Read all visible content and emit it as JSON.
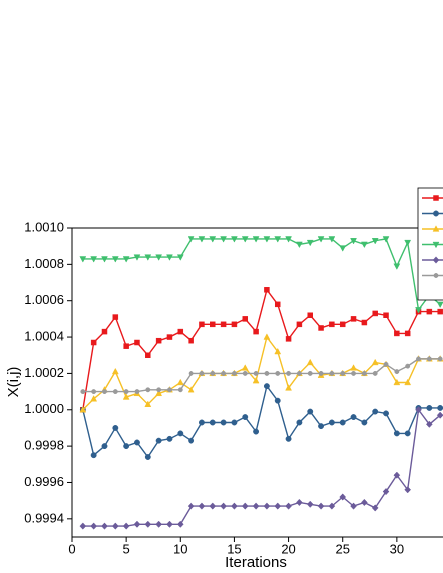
{
  "chart_data": {
    "type": "line",
    "x_label": "Iterations",
    "y_label": "X(i,j)",
    "x": [
      1,
      2,
      3,
      4,
      5,
      6,
      7,
      8,
      9,
      10,
      11,
      12,
      13,
      14,
      15,
      16,
      17,
      18,
      19,
      20,
      21,
      22,
      23,
      24,
      25,
      26,
      27,
      28,
      29,
      30,
      31,
      32,
      33,
      34
    ],
    "xlim": [
      0,
      35
    ],
    "xticks": [
      0,
      5,
      10,
      15,
      20,
      25,
      30
    ],
    "ylim": [
      0.9993,
      1.001
    ],
    "yticks": [
      {
        "value": 0.9994,
        "label": "0.9994"
      },
      {
        "value": 0.9996,
        "label": "0.9996"
      },
      {
        "value": 0.9998,
        "label": "0.9998"
      },
      {
        "value": 1.0,
        "label": "1.0000"
      },
      {
        "value": 1.0002,
        "label": "1.0002"
      },
      {
        "value": 1.0004,
        "label": "1.0004"
      },
      {
        "value": 1.0006,
        "label": "1.0006"
      },
      {
        "value": 1.0008,
        "label": "1.0008"
      },
      {
        "value": 1.001,
        "label": "1.0010"
      }
    ],
    "legend": "top-right",
    "series": [
      {
        "color": "#e8191c",
        "marker": "square",
        "values": [
          1.0,
          1.00037,
          1.00043,
          1.00051,
          1.00035,
          1.00037,
          1.0003,
          1.00038,
          1.0004,
          1.00043,
          1.00038,
          1.00047,
          1.00047,
          1.00047,
          1.00047,
          1.0005,
          1.00043,
          1.00066,
          1.00058,
          1.00039,
          1.00047,
          1.00052,
          1.00045,
          1.00047,
          1.00047,
          1.0005,
          1.00048,
          1.00053,
          1.00052,
          1.00042,
          1.00042,
          1.00054,
          1.00054,
          1.00054
        ]
      },
      {
        "color": "#2f5f8e",
        "marker": "circle",
        "values": [
          1.0,
          0.99975,
          0.9998,
          0.9999,
          0.9998,
          0.99982,
          0.99974,
          0.99983,
          0.99984,
          0.99987,
          0.99983,
          0.99993,
          0.99993,
          0.99993,
          0.99993,
          0.99996,
          0.99988,
          1.00013,
          1.00005,
          0.99984,
          0.99993,
          0.99999,
          0.99991,
          0.99993,
          0.99993,
          0.99996,
          0.99993,
          0.99999,
          0.99998,
          0.99987,
          0.99987,
          1.00001,
          1.00001,
          1.00001
        ]
      },
      {
        "color": "#f6c026",
        "marker": "triangle-up",
        "values": [
          1.0,
          1.00006,
          1.00011,
          1.00021,
          1.00007,
          1.00009,
          1.00003,
          1.00009,
          1.00011,
          1.00015,
          1.00011,
          1.0002,
          1.0002,
          1.0002,
          1.0002,
          1.00023,
          1.00016,
          1.0004,
          1.00032,
          1.00012,
          1.0002,
          1.00026,
          1.00019,
          1.0002,
          1.0002,
          1.00023,
          1.0002,
          1.00026,
          1.00025,
          1.00015,
          1.00015,
          1.00028,
          1.00028,
          1.00028
        ]
      },
      {
        "color": "#3fbf6e",
        "marker": "triangle-down",
        "values": [
          1.00083,
          1.00083,
          1.00083,
          1.00083,
          1.00083,
          1.00084,
          1.00084,
          1.00084,
          1.00084,
          1.00084,
          1.00094,
          1.00094,
          1.00094,
          1.00094,
          1.00094,
          1.00094,
          1.00094,
          1.00094,
          1.00094,
          1.00094,
          1.00091,
          1.00092,
          1.00094,
          1.00094,
          1.00089,
          1.00093,
          1.00091,
          1.00093,
          1.00094,
          1.00079,
          1.00092,
          1.00055,
          1.00063,
          1.00058
        ]
      },
      {
        "color": "#6b5b9a",
        "marker": "diamond",
        "values": [
          0.99936,
          0.99936,
          0.99936,
          0.99936,
          0.99936,
          0.99937,
          0.99937,
          0.99937,
          0.99937,
          0.99937,
          0.99947,
          0.99947,
          0.99947,
          0.99947,
          0.99947,
          0.99947,
          0.99947,
          0.99947,
          0.99947,
          0.99947,
          0.99949,
          0.99948,
          0.99947,
          0.99947,
          0.99952,
          0.99947,
          0.99949,
          0.99946,
          0.99955,
          0.99964,
          0.99956,
          1.0,
          0.99992,
          0.99997
        ]
      },
      {
        "color": "#9a9a9a",
        "marker": "small-circle",
        "values": [
          1.0001,
          1.0001,
          1.0001,
          1.0001,
          1.0001,
          1.0001,
          1.00011,
          1.00011,
          1.00011,
          1.00011,
          1.0002,
          1.0002,
          1.0002,
          1.0002,
          1.0002,
          1.0002,
          1.0002,
          1.0002,
          1.0002,
          1.0002,
          1.0002,
          1.0002,
          1.0002,
          1.0002,
          1.0002,
          1.0002,
          1.0002,
          1.0002,
          1.00025,
          1.00021,
          1.00024,
          1.00028,
          1.00028,
          1.00028
        ]
      }
    ]
  }
}
